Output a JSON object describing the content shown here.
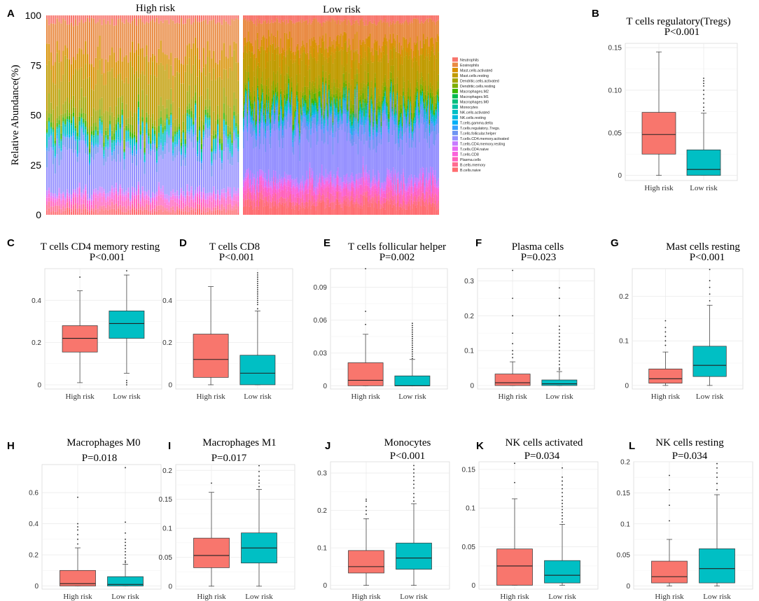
{
  "colors": {
    "high": "#F8766D",
    "low": "#00BFC4"
  },
  "chart_data": [
    {
      "id": "A",
      "type": "bar",
      "stacked": true,
      "letter": "A",
      "ylabel": "Relative Abundance(%)",
      "groups": [
        "High risk",
        "Low risk"
      ],
      "y_ticks": [
        "0",
        "25",
        "50",
        "75",
        "100"
      ],
      "ylim": [
        0,
        100
      ],
      "legend_position": "right",
      "legend": [
        {
          "name": "Neutrophils",
          "color": "#F8766D"
        },
        {
          "name": "Eosinophils",
          "color": "#E98A42"
        },
        {
          "name": "Mast.cells.activated",
          "color": "#D89000"
        },
        {
          "name": "Mast.cells.resting",
          "color": "#C09B00"
        },
        {
          "name": "Dendritic.cells.activated",
          "color": "#A3A500"
        },
        {
          "name": "Dendritic.cells.resting",
          "color": "#7CAE00"
        },
        {
          "name": "Macrophages.M2",
          "color": "#39B600"
        },
        {
          "name": "Macrophages.M1",
          "color": "#00BB4E"
        },
        {
          "name": "Macrophages.M0",
          "color": "#00BF7D"
        },
        {
          "name": "Monocytes",
          "color": "#00C1A3"
        },
        {
          "name": "NK.cells.activated",
          "color": "#00BFC4"
        },
        {
          "name": "NK.cells.resting",
          "color": "#00BAE0"
        },
        {
          "name": "T.cells.gamma.delta",
          "color": "#00B0F6"
        },
        {
          "name": "T.cells.regulatory..Tregs.",
          "color": "#35A2FF"
        },
        {
          "name": "T.cells.follicular.helper",
          "color": "#6E94F2"
        },
        {
          "name": "T.cells.CD4.memory.activated",
          "color": "#9590FF"
        },
        {
          "name": "T.cells.CD4.memory.resting",
          "color": "#C77CFF"
        },
        {
          "name": "T.cells.CD4.naive",
          "color": "#E76BF3"
        },
        {
          "name": "T.cells.CD8",
          "color": "#FA62DB"
        },
        {
          "name": "Plasma.cells",
          "color": "#FF62BC"
        },
        {
          "name": "B.cells.memory",
          "color": "#FF6C91"
        },
        {
          "name": "B.cells.naive",
          "color": "#FF6C70"
        }
      ]
    },
    {
      "id": "B",
      "type": "box",
      "letter": "B",
      "title": "T cells regulatory(Tregs)",
      "pvalue": "P<0.001",
      "categories": [
        "High risk",
        "Low risk"
      ],
      "ylim": [
        -0.006,
        0.155
      ],
      "yticks": [
        0,
        0.05,
        0.1,
        0.15
      ],
      "ytick_labels": [
        "0",
        "0.05",
        "0.10",
        "0.15"
      ],
      "boxes": [
        {
          "min": 0,
          "q1": 0.025,
          "median": 0.048,
          "q3": 0.074,
          "max": 0.145,
          "outliers": []
        },
        {
          "min": 0,
          "q1": 0,
          "median": 0.007,
          "q3": 0.03,
          "max": 0.073,
          "outliers": [
            0.076,
            0.08,
            0.085,
            0.09,
            0.095,
            0.1,
            0.105,
            0.108,
            0.111,
            0.114
          ]
        }
      ]
    },
    {
      "id": "C",
      "type": "box",
      "letter": "C",
      "title": "T cells CD4 memory resting",
      "pvalue": "P<0.001",
      "categories": [
        "High risk",
        "Low risk"
      ],
      "ylim": [
        -0.02,
        0.55
      ],
      "yticks": [
        0,
        0.2,
        0.4
      ],
      "ytick_labels": [
        "0",
        "0.2",
        "0.4"
      ],
      "boxes": [
        {
          "min": 0.01,
          "q1": 0.155,
          "median": 0.22,
          "q3": 0.28,
          "max": 0.445,
          "outliers": [
            0.51
          ]
        },
        {
          "min": 0.055,
          "q1": 0.22,
          "median": 0.29,
          "q3": 0.35,
          "max": 0.52,
          "outliers": [
            0.0,
            0.01,
            0.02,
            0.54
          ]
        }
      ]
    },
    {
      "id": "D",
      "type": "box",
      "letter": "D",
      "title": "T cells CD8",
      "pvalue": "P<0.001",
      "categories": [
        "High risk",
        "Low risk"
      ],
      "ylim": [
        -0.02,
        0.55
      ],
      "yticks": [
        0,
        0.2,
        0.4
      ],
      "ytick_labels": [
        "0",
        "0.2",
        "0.4"
      ],
      "boxes": [
        {
          "min": 0,
          "q1": 0.035,
          "median": 0.12,
          "q3": 0.24,
          "max": 0.465,
          "outliers": []
        },
        {
          "min": 0,
          "q1": 0,
          "median": 0.055,
          "q3": 0.14,
          "max": 0.35,
          "outliers": [
            0.36,
            0.38,
            0.39,
            0.4,
            0.41,
            0.42,
            0.43,
            0.44,
            0.45,
            0.46,
            0.47,
            0.48,
            0.49,
            0.5,
            0.51,
            0.52,
            0.53
          ]
        }
      ]
    },
    {
      "id": "E",
      "type": "box",
      "letter": "E",
      "title": "T cells follicular helper",
      "pvalue": "P=0.002",
      "categories": [
        "High risk",
        "Low risk"
      ],
      "ylim": [
        -0.003,
        0.107
      ],
      "yticks": [
        0,
        0.03,
        0.06,
        0.09
      ],
      "ytick_labels": [
        "0",
        "0.03",
        "0.06",
        "0.09"
      ],
      "boxes": [
        {
          "min": 0,
          "q1": 0,
          "median": 0.005,
          "q3": 0.021,
          "max": 0.047,
          "outliers": [
            0.056,
            0.068,
            0.107
          ]
        },
        {
          "min": 0,
          "q1": 0,
          "median": 0,
          "q3": 0.009,
          "max": 0.024,
          "outliers": [
            0.025,
            0.027,
            0.029,
            0.031,
            0.033,
            0.035,
            0.037,
            0.039,
            0.041,
            0.043,
            0.045,
            0.047,
            0.049,
            0.051,
            0.053,
            0.055,
            0.057
          ]
        }
      ]
    },
    {
      "id": "F",
      "type": "box",
      "letter": "F",
      "title": "Plasma cells",
      "pvalue": "P=0.023",
      "categories": [
        "High risk",
        "Low risk"
      ],
      "ylim": [
        -0.01,
        0.335
      ],
      "yticks": [
        0,
        0.1,
        0.2,
        0.3
      ],
      "ytick_labels": [
        "0",
        "0.1",
        "0.2",
        "0.3"
      ],
      "boxes": [
        {
          "min": 0,
          "q1": 0,
          "median": 0.008,
          "q3": 0.033,
          "max": 0.068,
          "outliers": [
            0.08,
            0.09,
            0.1,
            0.12,
            0.15,
            0.2,
            0.25,
            0.33
          ]
        },
        {
          "min": 0,
          "q1": 0,
          "median": 0.005,
          "q3": 0.016,
          "max": 0.04,
          "outliers": [
            0.045,
            0.05,
            0.06,
            0.07,
            0.08,
            0.09,
            0.1,
            0.11,
            0.12,
            0.13,
            0.14,
            0.15,
            0.16,
            0.17,
            0.2,
            0.25,
            0.28
          ]
        }
      ]
    },
    {
      "id": "G",
      "type": "box",
      "letter": "G",
      "title": "Mast cells resting",
      "pvalue": "P<0.001",
      "categories": [
        "High risk",
        "Low risk"
      ],
      "ylim": [
        -0.008,
        0.262
      ],
      "yticks": [
        0,
        0.1,
        0.2
      ],
      "ytick_labels": [
        "0",
        "0.1",
        "0.2"
      ],
      "boxes": [
        {
          "min": 0,
          "q1": 0.005,
          "median": 0.015,
          "q3": 0.037,
          "max": 0.075,
          "outliers": [
            0.09,
            0.1,
            0.11,
            0.12,
            0.13,
            0.145
          ]
        },
        {
          "min": 0,
          "q1": 0.02,
          "median": 0.045,
          "q3": 0.088,
          "max": 0.18,
          "outliers": [
            0.19,
            0.205,
            0.22,
            0.235,
            0.26
          ]
        }
      ]
    },
    {
      "id": "H",
      "type": "box",
      "letter": "H",
      "title": "Macrophages M0",
      "pvalue": "P=0.018",
      "categories": [
        "High risk",
        "Low risk"
      ],
      "ylim": [
        -0.02,
        0.78
      ],
      "yticks": [
        0,
        0.2,
        0.4,
        0.6
      ],
      "ytick_labels": [
        "0",
        "0.2",
        "0.4",
        "0.6"
      ],
      "boxes": [
        {
          "min": 0,
          "q1": 0,
          "median": 0.015,
          "q3": 0.1,
          "max": 0.245,
          "outliers": [
            0.27,
            0.3,
            0.33,
            0.36,
            0.38,
            0.4,
            0.57
          ]
        },
        {
          "min": 0,
          "q1": 0,
          "median": 0.01,
          "q3": 0.06,
          "max": 0.14,
          "outliers": [
            0.15,
            0.16,
            0.18,
            0.2,
            0.22,
            0.24,
            0.26,
            0.28,
            0.3,
            0.34,
            0.41,
            0.76
          ]
        }
      ]
    },
    {
      "id": "I",
      "type": "box",
      "letter": "I",
      "title": "Macrophages M1",
      "pvalue": "P=0.017",
      "categories": [
        "High risk",
        "Low risk"
      ],
      "ylim": [
        -0.005,
        0.21
      ],
      "yticks": [
        0,
        0.05,
        0.1,
        0.15,
        0.2
      ],
      "ytick_labels": [
        "0",
        "0.05",
        "0.1",
        "0.15",
        "0.2"
      ],
      "boxes": [
        {
          "min": 0,
          "q1": 0.032,
          "median": 0.053,
          "q3": 0.083,
          "max": 0.162,
          "outliers": [
            0.178
          ]
        },
        {
          "min": 0,
          "q1": 0.04,
          "median": 0.066,
          "q3": 0.092,
          "max": 0.167,
          "outliers": [
            0.172,
            0.178,
            0.183,
            0.19,
            0.198,
            0.208
          ]
        }
      ]
    },
    {
      "id": "J",
      "type": "box",
      "letter": "J",
      "title": "Monocytes",
      "pvalue": "P<0.001",
      "categories": [
        "High risk",
        "Low risk"
      ],
      "ylim": [
        -0.01,
        0.33
      ],
      "yticks": [
        0,
        0.1,
        0.2,
        0.3
      ],
      "ytick_labels": [
        "0",
        "0.1",
        "0.2",
        "0.3"
      ],
      "boxes": [
        {
          "min": 0,
          "q1": 0.033,
          "median": 0.05,
          "q3": 0.093,
          "max": 0.178,
          "outliers": [
            0.19,
            0.2,
            0.21,
            0.225,
            0.23
          ]
        },
        {
          "min": 0,
          "q1": 0.043,
          "median": 0.073,
          "q3": 0.113,
          "max": 0.218,
          "outliers": [
            0.225,
            0.235,
            0.245,
            0.26,
            0.27,
            0.28,
            0.29,
            0.3,
            0.31,
            0.32
          ]
        }
      ]
    },
    {
      "id": "K",
      "type": "box",
      "letter": "K",
      "title": "NK cells activated",
      "pvalue": "P=0.034",
      "categories": [
        "High risk",
        "Low risk"
      ],
      "ylim": [
        -0.005,
        0.16
      ],
      "yticks": [
        0,
        0.05,
        0.1,
        0.15
      ],
      "ytick_labels": [
        "0",
        "0.05",
        "0.1",
        "0.15"
      ],
      "boxes": [
        {
          "min": 0,
          "q1": 0,
          "median": 0.025,
          "q3": 0.047,
          "max": 0.112,
          "outliers": [
            0.133,
            0.158
          ]
        },
        {
          "min": 0,
          "q1": 0.003,
          "median": 0.013,
          "q3": 0.032,
          "max": 0.079,
          "outliers": [
            0.082,
            0.086,
            0.09,
            0.094,
            0.098,
            0.102,
            0.106,
            0.11,
            0.115,
            0.12,
            0.125,
            0.13,
            0.135,
            0.14,
            0.152
          ]
        }
      ]
    },
    {
      "id": "L",
      "type": "box",
      "letter": "L",
      "title": "NK cells resting",
      "pvalue": "P=0.034",
      "categories": [
        "High risk",
        "Low risk"
      ],
      "ylim": [
        -0.005,
        0.2
      ],
      "yticks": [
        0,
        0.05,
        0.1,
        0.15,
        0.2
      ],
      "ytick_labels": [
        "0",
        "0.05",
        "0.1",
        "0.15",
        "0.2"
      ],
      "boxes": [
        {
          "min": 0,
          "q1": 0.005,
          "median": 0.015,
          "q3": 0.04,
          "max": 0.075,
          "outliers": [
            0.105,
            0.13,
            0.155,
            0.178
          ]
        },
        {
          "min": 0,
          "q1": 0.005,
          "median": 0.028,
          "q3": 0.06,
          "max": 0.147,
          "outliers": [
            0.155,
            0.165,
            0.175,
            0.182,
            0.19,
            0.197
          ]
        }
      ]
    }
  ]
}
